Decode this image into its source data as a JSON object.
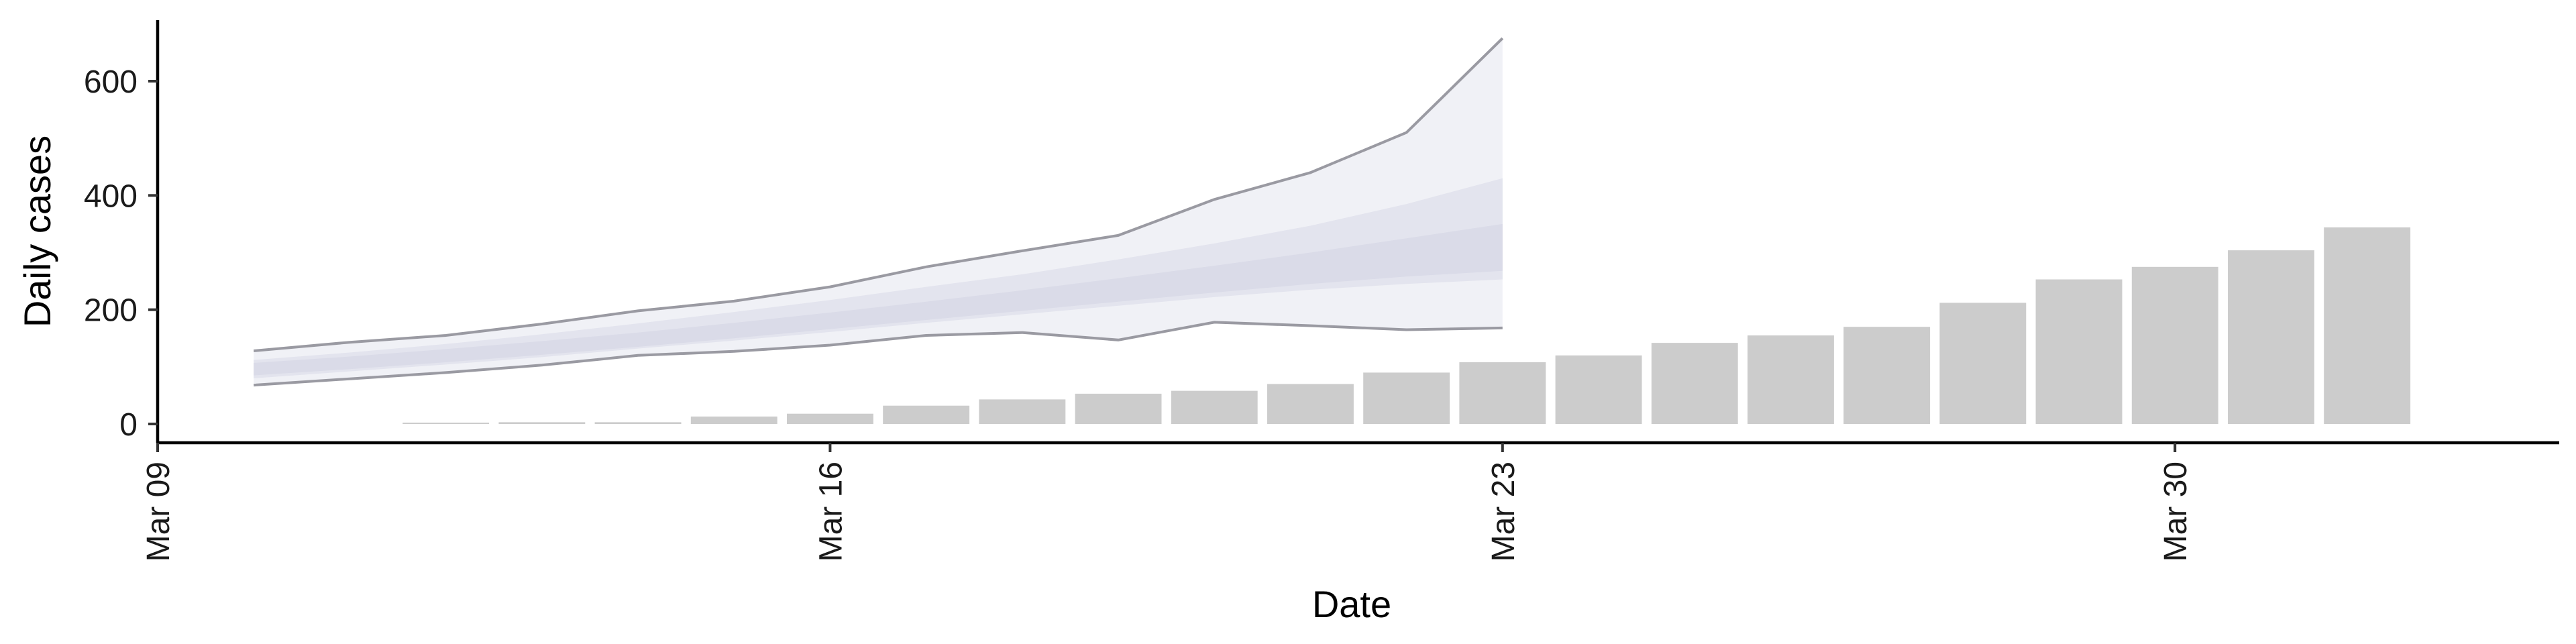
{
  "chart_data": {
    "type": "bar",
    "xlabel": "Date",
    "ylabel": "Daily cases",
    "x_range": [
      "2020-03-09",
      "2020-04-03"
    ],
    "ylim": [
      0,
      700
    ],
    "x_ticks": [
      {
        "date": "2020-03-09",
        "label": "Mar 09"
      },
      {
        "date": "2020-03-16",
        "label": "Mar 16"
      },
      {
        "date": "2020-03-23",
        "label": "Mar 23"
      },
      {
        "date": "2020-03-30",
        "label": "Mar 30"
      }
    ],
    "y_ticks": [
      0,
      200,
      400,
      600
    ],
    "grid": false,
    "legend": "none",
    "series": [
      {
        "type": "bar",
        "color": "#cccccc",
        "points": [
          {
            "date": "2020-03-12",
            "value": 1
          },
          {
            "date": "2020-03-13",
            "value": 3
          },
          {
            "date": "2020-03-14",
            "value": 3
          },
          {
            "date": "2020-03-15",
            "value": 13
          },
          {
            "date": "2020-03-16",
            "value": 18
          },
          {
            "date": "2020-03-17",
            "value": 32
          },
          {
            "date": "2020-03-18",
            "value": 43
          },
          {
            "date": "2020-03-19",
            "value": 53
          },
          {
            "date": "2020-03-20",
            "value": 58
          },
          {
            "date": "2020-03-21",
            "value": 70
          },
          {
            "date": "2020-03-22",
            "value": 90
          },
          {
            "date": "2020-03-23",
            "value": 108
          },
          {
            "date": "2020-03-24",
            "value": 120
          },
          {
            "date": "2020-03-25",
            "value": 142
          },
          {
            "date": "2020-03-26",
            "value": 155
          },
          {
            "date": "2020-03-27",
            "value": 170
          },
          {
            "date": "2020-03-28",
            "value": 212
          },
          {
            "date": "2020-03-29",
            "value": 253
          },
          {
            "date": "2020-03-30",
            "value": 275
          },
          {
            "date": "2020-03-31",
            "value": 304
          },
          {
            "date": "2020-04-01",
            "value": 344
          }
        ]
      },
      {
        "type": "ribbon",
        "color": "#dadbe8",
        "dates": [
          "2020-03-10",
          "2020-03-11",
          "2020-03-12",
          "2020-03-13",
          "2020-03-14",
          "2020-03-15",
          "2020-03-16",
          "2020-03-17",
          "2020-03-18",
          "2020-03-19",
          "2020-03-20",
          "2020-03-21",
          "2020-03-22",
          "2020-03-23"
        ],
        "outer_upper": [
          128,
          143,
          155,
          175,
          198,
          215,
          240,
          275,
          303,
          330,
          393,
          440,
          510,
          675
        ],
        "outer_lower": [
          68,
          79,
          90,
          103,
          120,
          127,
          138,
          155,
          160,
          147,
          178,
          172,
          165,
          168
        ],
        "mid_upper": [
          112,
          125,
          140,
          157,
          176,
          196,
          217,
          240,
          262,
          288,
          316,
          347,
          385,
          430
        ],
        "mid_lower": [
          80,
          92,
          104,
          117,
          132,
          146,
          161,
          177,
          192,
          207,
          222,
          235,
          245,
          253
        ],
        "inner_upper": [
          107,
          118,
          131,
          145,
          160,
          177,
          195,
          214,
          234,
          255,
          277,
          300,
          325,
          350
        ],
        "inner_lower": [
          85,
          96,
          108,
          121,
          135,
          150,
          166,
          182,
          198,
          214,
          230,
          245,
          258,
          268
        ]
      }
    ]
  }
}
